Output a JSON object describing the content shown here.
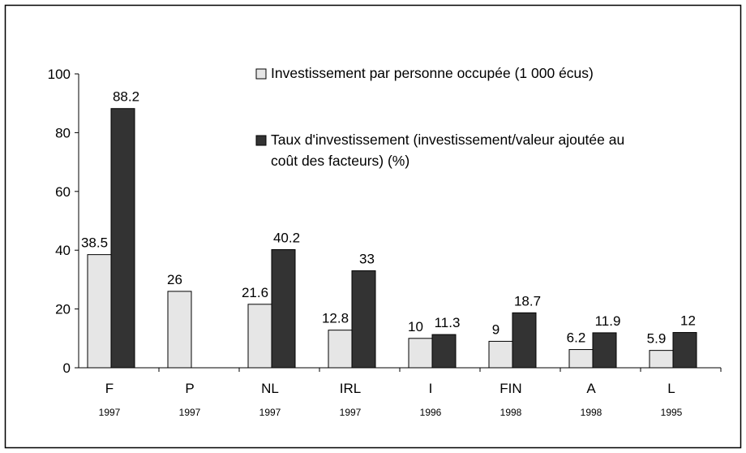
{
  "chart_data": {
    "type": "bar",
    "categories": [
      "F",
      "P",
      "NL",
      "IRL",
      "I",
      "FIN",
      "A",
      "L"
    ],
    "category_years": [
      "1997",
      "1997",
      "1997",
      "1997",
      "1996",
      "1998",
      "1998",
      "1995"
    ],
    "series": [
      {
        "name": "Investissement par personne occupée (1 000 écus)",
        "color": "#e6e6e6",
        "values": [
          38.5,
          26,
          21.6,
          12.8,
          10,
          9,
          6.2,
          5.9
        ]
      },
      {
        "name": "Taux d'investissement (investissement/valeur ajoutée au coût des facteurs) (%)",
        "color": "#333333",
        "values": [
          88.2,
          null,
          40.2,
          33,
          11.3,
          18.7,
          11.9,
          12
        ]
      }
    ],
    "ylim": [
      0,
      100
    ],
    "yticks": [
      0,
      20,
      40,
      60,
      80,
      100
    ],
    "grid": false
  }
}
